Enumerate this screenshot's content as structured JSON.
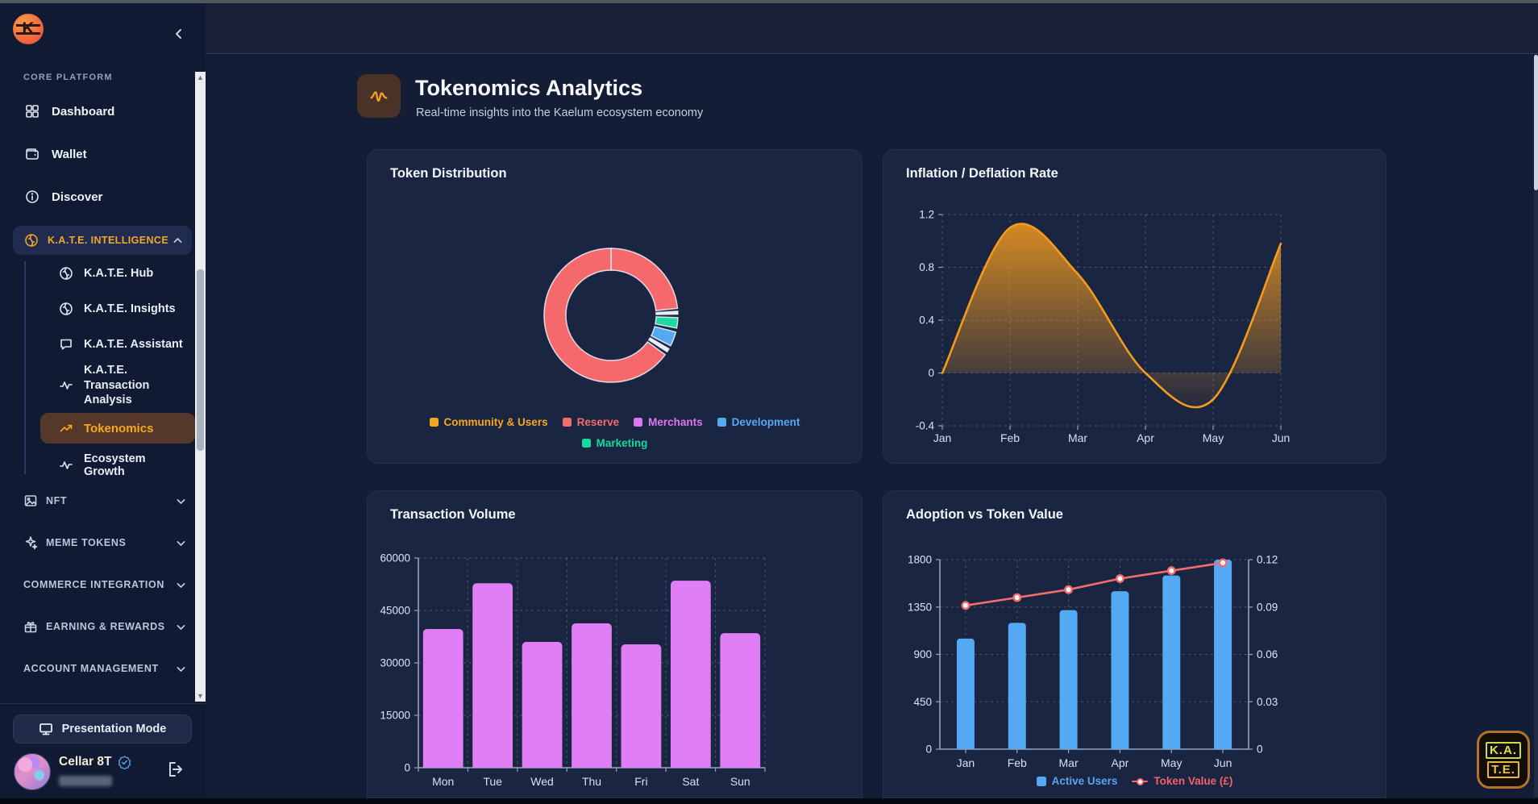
{
  "sidebar": {
    "logo_letter": "K",
    "core_section_label": "CORE PLATFORM",
    "main_items": [
      {
        "label": "Dashboard",
        "icon": "dashboard-icon"
      },
      {
        "label": "Wallet",
        "icon": "wallet-icon"
      },
      {
        "label": "Discover",
        "icon": "info-icon"
      }
    ],
    "kate_group": {
      "label": "K.A.T.E. INTELLIGENCE",
      "icon": "brain-icon",
      "expanded": true,
      "children": [
        {
          "label": "K.A.T.E. Hub",
          "icon": "brain-icon"
        },
        {
          "label": "K.A.T.E. Insights",
          "icon": "brain-icon"
        },
        {
          "label": "K.A.T.E. Assistant",
          "icon": "chat-icon"
        },
        {
          "label": "K.A.T.E. Transaction Analysis",
          "icon": "activity-icon",
          "two_line": true
        },
        {
          "label": "Tokenomics",
          "icon": "trend-up-icon",
          "active": true
        },
        {
          "label": "Ecosystem Growth",
          "icon": "activity-icon"
        }
      ]
    },
    "collapsed_groups": [
      {
        "label": "NFT",
        "icon": "image-icon"
      },
      {
        "label": "MEME TOKENS",
        "icon": "sparkles-icon"
      },
      {
        "label": "COMMERCE INTEGRATION",
        "icon": null
      },
      {
        "label": "EARNING & REWARDS",
        "icon": "gift-icon"
      },
      {
        "label": "ACCOUNT MANAGEMENT",
        "icon": null
      }
    ],
    "footer": {
      "presentation_button": "Presentation Mode",
      "user_name": "Cellar 8T",
      "verified": true
    }
  },
  "header": {
    "title": "Tokenomics Analytics",
    "subtitle": "Real-time insights into the Kaelum ecosystem economy",
    "icon": "activity-icon"
  },
  "kate_badge": {
    "line1": "K.A.",
    "line2": "T.E."
  },
  "colors": {
    "accent_orange": "#f5a623",
    "salmon": "#f56c6c",
    "violet": "#e07ef5",
    "blue": "#54a9f2",
    "green": "#17d9a0",
    "orchid": "#df76f1"
  },
  "chart_data": [
    {
      "id": "token-distribution",
      "type": "pie",
      "title": "Token Distribution",
      "legend": [
        {
          "label": "Community & Users",
          "color": "#f6a623"
        },
        {
          "label": "Reserve",
          "color": "#f56c6c"
        },
        {
          "label": "Merchants",
          "color": "#df76f1"
        },
        {
          "label": "Development",
          "color": "#54a9f2"
        },
        {
          "label": "Marketing",
          "color": "#17d9a0"
        }
      ],
      "legend_rows": [
        4,
        1
      ],
      "arcs": [
        {
          "label": "Reserve",
          "color": "#f5696d",
          "start_deg": 0,
          "end_deg": 84
        },
        {
          "label": "Community & Users",
          "color": "#e8edf5",
          "start_deg": 86.5,
          "end_deg": 89
        },
        {
          "label": "Marketing",
          "color": "#1fd9a0",
          "start_deg": 92,
          "end_deg": 101
        },
        {
          "label": "Development",
          "color": "#54a9f2",
          "start_deg": 104.5,
          "end_deg": 117
        },
        {
          "label": "Merchants",
          "color": "#e8edf5",
          "start_deg": 120,
          "end_deg": 123
        },
        {
          "label": "Reserve",
          "color": "#f5696d",
          "start_deg": 126,
          "end_deg": 360
        }
      ],
      "donut": true
    },
    {
      "id": "inflation-deflation",
      "type": "area",
      "title": "Inflation / Deflation Rate",
      "x": [
        "Jan",
        "Feb",
        "Mar",
        "Apr",
        "May",
        "Jun"
      ],
      "values": [
        0,
        1.1,
        0.75,
        0,
        -0.2,
        0.98
      ],
      "ylim": [
        -0.4,
        1.2
      ],
      "yticks": [
        1.2,
        0.8,
        0.4,
        0,
        -0.4
      ],
      "line_color": "#f59b1e",
      "smooth": true,
      "grid": "dashed"
    },
    {
      "id": "transaction-volume",
      "type": "bar",
      "title": "Transaction Volume",
      "categories": [
        "Mon",
        "Tue",
        "Wed",
        "Thu",
        "Fri",
        "Sat",
        "Sun"
      ],
      "values": [
        39700,
        52800,
        36000,
        41300,
        35300,
        53500,
        38500
      ],
      "ylim": [
        0,
        60000
      ],
      "yticks": [
        60000,
        45000,
        30000,
        15000,
        0
      ],
      "bar_color": "#e07ef5"
    },
    {
      "id": "adoption-vs-token-value",
      "type": "bar+line",
      "title": "Adoption vs Token Value",
      "categories": [
        "Jan",
        "Feb",
        "Mar",
        "Apr",
        "May",
        "Jun"
      ],
      "series": [
        {
          "name": "Active Users",
          "type": "bar",
          "axis": "left",
          "color": "#54a9f2",
          "values": [
            1050,
            1200,
            1320,
            1500,
            1650,
            1800
          ]
        },
        {
          "name": "Token Value (£)",
          "type": "line",
          "axis": "right",
          "color": "#f56c6c",
          "values": [
            0.091,
            0.096,
            0.101,
            0.108,
            0.113,
            0.118
          ]
        }
      ],
      "left_ylim": [
        0,
        1800
      ],
      "left_ticks": [
        1800,
        1350,
        900,
        450,
        0
      ],
      "right_ylim": [
        0,
        0.12
      ],
      "right_ticks": [
        0.12,
        0.09,
        0.06,
        0.03,
        0
      ],
      "legend_position": "bottom"
    }
  ]
}
